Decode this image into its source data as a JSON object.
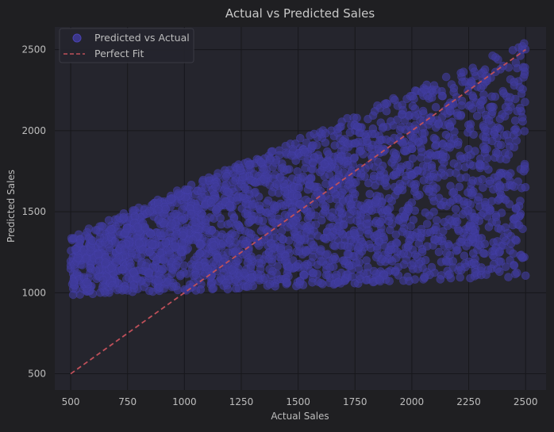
{
  "colors": {
    "figure_bg": "#1f1f22",
    "plot_bg": "#25252d",
    "grid": "#17171b",
    "text": "#bdbdbd",
    "title_text": "#c8c8c8",
    "point_fill": "#3f3a9a",
    "point_stroke": "#4a43b3",
    "fit_line": "#c0505a",
    "legend_bg": "#25252d",
    "legend_border": "#3a3a44"
  },
  "chart_data": {
    "type": "scatter",
    "title": "Actual vs Predicted Sales",
    "xlabel": "Actual Sales",
    "ylabel": "Predicted Sales",
    "xlim": [
      430,
      2590
    ],
    "ylim": [
      400,
      2640
    ],
    "xticks": [
      500,
      750,
      1000,
      1250,
      1500,
      1750,
      2000,
      2250,
      2500
    ],
    "yticks": [
      500,
      1000,
      1500,
      2000,
      2500
    ],
    "grid": true,
    "legend_position": "upper-left",
    "legend": [
      {
        "label": "Predicted vs Actual",
        "marker": "circle"
      },
      {
        "label": "Perfect Fit",
        "marker": "dashed-line"
      }
    ],
    "series": [
      {
        "name": "Predicted vs Actual",
        "style": "scatter",
        "point_alpha": 0.65,
        "n_points": 2500,
        "x_range": [
          500,
          2500
        ],
        "lower_bound_at_x500": 980,
        "upper_bound_at_x500": 1350,
        "lower_bound_at_x2500": 1100,
        "upper_bound_at_x2500": 2550,
        "spread_note": "Predicted values form a fan that widens as actual sales increase."
      },
      {
        "name": "Perfect Fit",
        "style": "dashed-line",
        "x": [
          500,
          2500
        ],
        "y": [
          500,
          2500
        ]
      }
    ]
  }
}
